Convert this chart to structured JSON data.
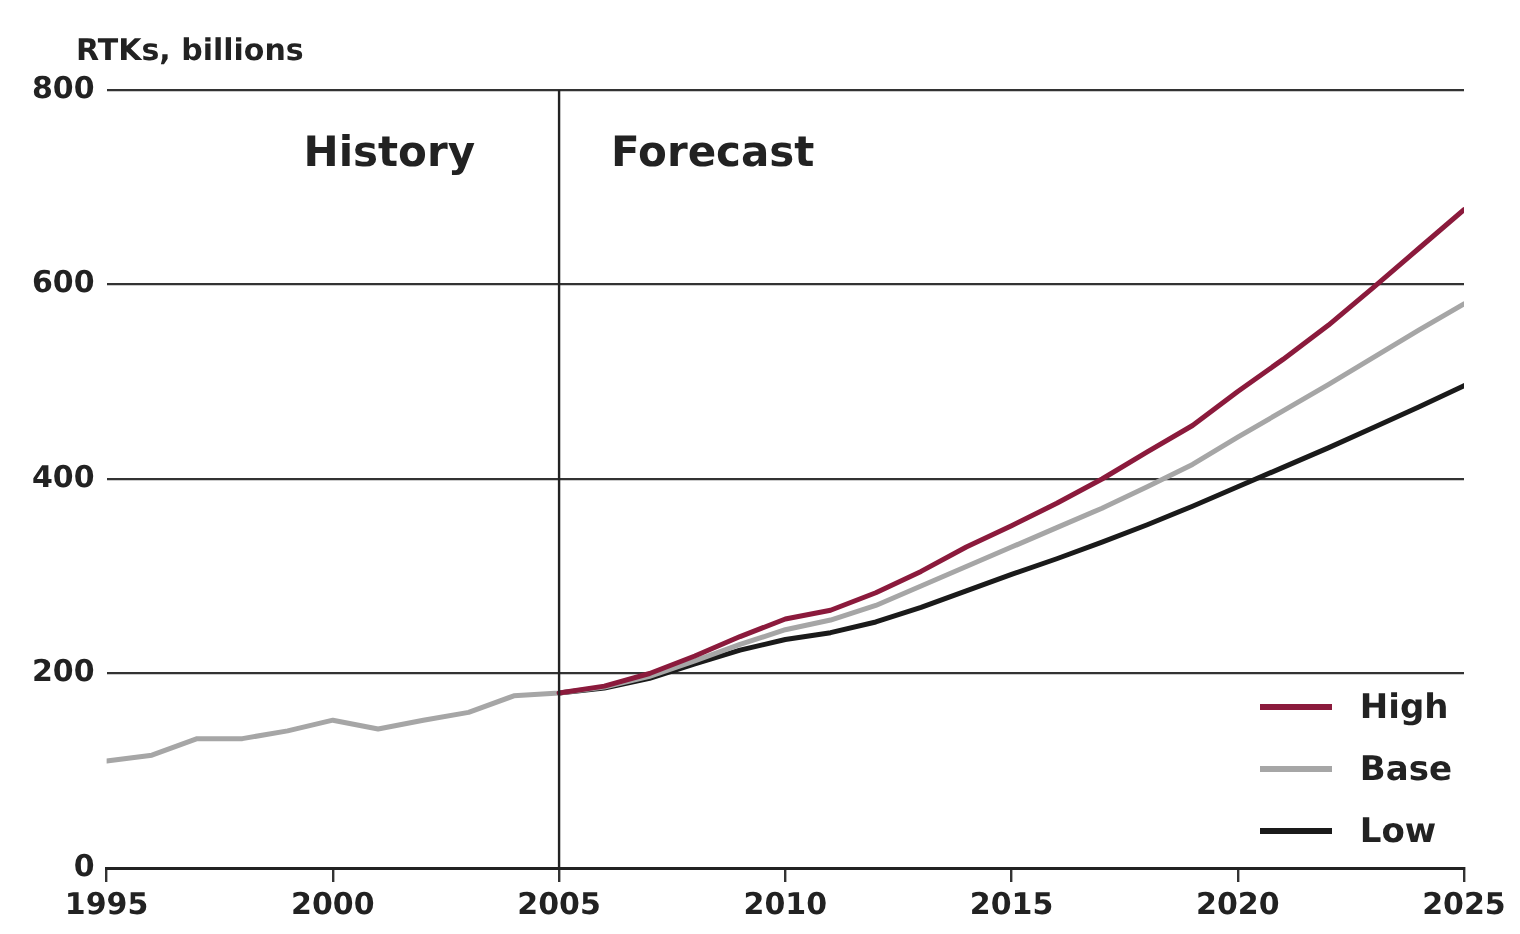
{
  "chart_data": {
    "type": "line",
    "ylabel": "RTKs, billions",
    "x": [
      1995,
      1996,
      1997,
      1998,
      1999,
      2000,
      2001,
      2002,
      2003,
      2004,
      2005,
      2006,
      2007,
      2008,
      2009,
      2010,
      2011,
      2012,
      2013,
      2014,
      2015,
      2016,
      2017,
      2018,
      2019,
      2020,
      2021,
      2022,
      2023,
      2024,
      2025
    ],
    "series": [
      {
        "name": "High",
        "color": "#8b1a3c",
        "x": [
          2005,
          2006,
          2007,
          2008,
          2009,
          2010,
          2011,
          2012,
          2013,
          2014,
          2015,
          2016,
          2017,
          2018,
          2019,
          2020,
          2021,
          2022,
          2023,
          2024,
          2025
        ],
        "values": [
          180,
          187,
          200,
          218,
          238,
          256,
          265,
          283,
          305,
          330,
          352,
          375,
          400,
          428,
          455,
          490,
          523,
          558,
          597,
          637,
          677
        ]
      },
      {
        "name": "Base",
        "color": "#a6a6a6",
        "values": [
          110,
          116,
          133,
          133,
          141,
          152,
          143,
          152,
          160,
          177,
          180,
          186,
          197,
          213,
          230,
          245,
          255,
          270,
          290,
          310,
          330,
          350,
          370,
          392,
          415,
          443,
          470,
          497,
          525,
          553,
          580
        ]
      },
      {
        "name": "Low",
        "color": "#1a1a1a",
        "x": [
          2005,
          2006,
          2007,
          2008,
          2009,
          2010,
          2011,
          2012,
          2013,
          2014,
          2015,
          2016,
          2017,
          2018,
          2019,
          2020,
          2021,
          2022,
          2023,
          2024,
          2025
        ],
        "values": [
          180,
          185,
          195,
          210,
          224,
          235,
          242,
          253,
          268,
          285,
          302,
          318,
          335,
          353,
          372,
          392,
          412,
          432,
          453,
          474,
          496
        ]
      }
    ],
    "xlim": [
      1995,
      2025
    ],
    "xticks": [
      1995,
      2000,
      2005,
      2010,
      2015,
      2020,
      2025
    ],
    "ylim": [
      0,
      800
    ],
    "yticks": [
      0,
      200,
      400,
      600,
      800
    ],
    "grid": "y",
    "legend": "bottom right",
    "marker": "none",
    "line_style": "solid",
    "ref_lines": [
      {
        "axis": "x",
        "value": 2005
      }
    ],
    "annotations": [
      "History",
      "Forecast"
    ]
  }
}
